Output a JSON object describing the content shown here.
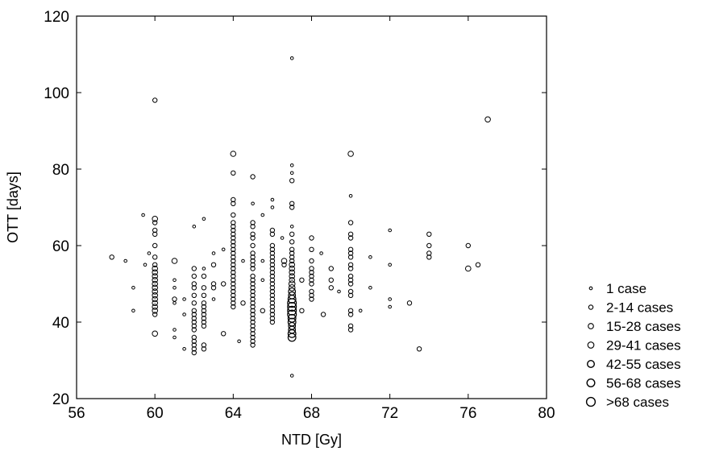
{
  "chart_data": {
    "type": "scatter",
    "title": "",
    "xlabel": "NTD [Gy]",
    "ylabel": "OTT [days]",
    "xlim": [
      56,
      80
    ],
    "ylim": [
      20,
      120
    ],
    "x_ticks": [
      56,
      60,
      64,
      68,
      72,
      76,
      80
    ],
    "y_ticks": [
      20,
      40,
      60,
      80,
      100,
      120
    ],
    "x_tick_labels": [
      "56",
      "60",
      "64",
      "68",
      "72",
      "76",
      "80"
    ],
    "y_tick_labels": [
      "20",
      "40",
      "60",
      "80",
      "100",
      "120"
    ],
    "grid": false,
    "legend_position": "right",
    "marker": "open-circle",
    "marker_color": "#000000",
    "legend": [
      {
        "label": "1 case",
        "size_class": 1
      },
      {
        "label": "2-14 cases",
        "size_class": 2
      },
      {
        "label": "15-28 cases",
        "size_class": 3
      },
      {
        "label": "29-41 cases",
        "size_class": 4
      },
      {
        "label": "42-55 cases",
        "size_class": 5
      },
      {
        "label": "56-68 cases",
        "size_class": 6
      },
      {
        "label": ">68 cases",
        "size_class": 7
      }
    ],
    "points": [
      {
        "x": 57.8,
        "y": 57,
        "s": 2
      },
      {
        "x": 58.5,
        "y": 56,
        "s": 1
      },
      {
        "x": 58.9,
        "y": 49,
        "s": 1
      },
      {
        "x": 58.9,
        "y": 43,
        "s": 1
      },
      {
        "x": 59.4,
        "y": 68,
        "s": 1
      },
      {
        "x": 59.5,
        "y": 55,
        "s": 1
      },
      {
        "x": 59.7,
        "y": 58,
        "s": 1
      },
      {
        "x": 60.0,
        "y": 98,
        "s": 2
      },
      {
        "x": 60.0,
        "y": 67,
        "s": 3
      },
      {
        "x": 60.0,
        "y": 66,
        "s": 2
      },
      {
        "x": 60.0,
        "y": 64,
        "s": 2
      },
      {
        "x": 60.0,
        "y": 63,
        "s": 2
      },
      {
        "x": 60.0,
        "y": 60,
        "s": 2
      },
      {
        "x": 60.0,
        "y": 57,
        "s": 2
      },
      {
        "x": 60.0,
        "y": 55,
        "s": 2
      },
      {
        "x": 60.0,
        "y": 54,
        "s": 3
      },
      {
        "x": 60.0,
        "y": 53,
        "s": 3
      },
      {
        "x": 60.0,
        "y": 52,
        "s": 3
      },
      {
        "x": 60.0,
        "y": 51,
        "s": 3
      },
      {
        "x": 60.0,
        "y": 50,
        "s": 3
      },
      {
        "x": 60.0,
        "y": 49,
        "s": 3
      },
      {
        "x": 60.0,
        "y": 48,
        "s": 3
      },
      {
        "x": 60.0,
        "y": 47,
        "s": 3
      },
      {
        "x": 60.0,
        "y": 46,
        "s": 3
      },
      {
        "x": 60.0,
        "y": 45,
        "s": 3
      },
      {
        "x": 60.0,
        "y": 44,
        "s": 3
      },
      {
        "x": 60.0,
        "y": 43,
        "s": 3
      },
      {
        "x": 60.0,
        "y": 42,
        "s": 2
      },
      {
        "x": 60.0,
        "y": 37,
        "s": 3
      },
      {
        "x": 61.0,
        "y": 56,
        "s": 3
      },
      {
        "x": 61.0,
        "y": 51,
        "s": 1
      },
      {
        "x": 61.0,
        "y": 49,
        "s": 1
      },
      {
        "x": 61.0,
        "y": 46,
        "s": 2
      },
      {
        "x": 61.0,
        "y": 45,
        "s": 1
      },
      {
        "x": 61.0,
        "y": 38,
        "s": 1
      },
      {
        "x": 61.0,
        "y": 36,
        "s": 1
      },
      {
        "x": 61.5,
        "y": 46,
        "s": 1
      },
      {
        "x": 61.5,
        "y": 42,
        "s": 1
      },
      {
        "x": 61.5,
        "y": 33,
        "s": 1
      },
      {
        "x": 62.0,
        "y": 65,
        "s": 1
      },
      {
        "x": 62.0,
        "y": 54,
        "s": 2
      },
      {
        "x": 62.0,
        "y": 52,
        "s": 2
      },
      {
        "x": 62.0,
        "y": 50,
        "s": 2
      },
      {
        "x": 62.0,
        "y": 49,
        "s": 2
      },
      {
        "x": 62.0,
        "y": 47,
        "s": 2
      },
      {
        "x": 62.0,
        "y": 45,
        "s": 2
      },
      {
        "x": 62.0,
        "y": 43,
        "s": 2
      },
      {
        "x": 62.0,
        "y": 42,
        "s": 2
      },
      {
        "x": 62.0,
        "y": 41,
        "s": 2
      },
      {
        "x": 62.0,
        "y": 40,
        "s": 2
      },
      {
        "x": 62.0,
        "y": 39,
        "s": 2
      },
      {
        "x": 62.0,
        "y": 38,
        "s": 2
      },
      {
        "x": 62.0,
        "y": 36,
        "s": 2
      },
      {
        "x": 62.0,
        "y": 35,
        "s": 2
      },
      {
        "x": 62.0,
        "y": 34,
        "s": 2
      },
      {
        "x": 62.0,
        "y": 33,
        "s": 2
      },
      {
        "x": 62.0,
        "y": 32,
        "s": 2
      },
      {
        "x": 62.5,
        "y": 67,
        "s": 1
      },
      {
        "x": 62.5,
        "y": 54,
        "s": 1
      },
      {
        "x": 62.5,
        "y": 52,
        "s": 2
      },
      {
        "x": 62.5,
        "y": 49,
        "s": 2
      },
      {
        "x": 62.5,
        "y": 47,
        "s": 2
      },
      {
        "x": 62.5,
        "y": 45,
        "s": 2
      },
      {
        "x": 62.5,
        "y": 44,
        "s": 2
      },
      {
        "x": 62.5,
        "y": 43,
        "s": 2
      },
      {
        "x": 62.5,
        "y": 42,
        "s": 2
      },
      {
        "x": 62.5,
        "y": 41,
        "s": 2
      },
      {
        "x": 62.5,
        "y": 40,
        "s": 2
      },
      {
        "x": 62.5,
        "y": 39,
        "s": 2
      },
      {
        "x": 62.5,
        "y": 34,
        "s": 2
      },
      {
        "x": 62.5,
        "y": 33,
        "s": 2
      },
      {
        "x": 63.0,
        "y": 58,
        "s": 1
      },
      {
        "x": 63.0,
        "y": 55,
        "s": 2
      },
      {
        "x": 63.0,
        "y": 50,
        "s": 2
      },
      {
        "x": 63.0,
        "y": 49,
        "s": 2
      },
      {
        "x": 63.0,
        "y": 46,
        "s": 1
      },
      {
        "x": 63.5,
        "y": 59,
        "s": 1
      },
      {
        "x": 63.5,
        "y": 50,
        "s": 2
      },
      {
        "x": 63.5,
        "y": 37,
        "s": 2
      },
      {
        "x": 64.0,
        "y": 84,
        "s": 3
      },
      {
        "x": 64.0,
        "y": 79,
        "s": 2
      },
      {
        "x": 64.0,
        "y": 72,
        "s": 2
      },
      {
        "x": 64.0,
        "y": 71,
        "s": 2
      },
      {
        "x": 64.0,
        "y": 68,
        "s": 2
      },
      {
        "x": 64.0,
        "y": 66,
        "s": 2
      },
      {
        "x": 64.0,
        "y": 65,
        "s": 2
      },
      {
        "x": 64.0,
        "y": 64,
        "s": 2
      },
      {
        "x": 64.0,
        "y": 63,
        "s": 2
      },
      {
        "x": 64.0,
        "y": 62,
        "s": 2
      },
      {
        "x": 64.0,
        "y": 61,
        "s": 2
      },
      {
        "x": 64.0,
        "y": 60,
        "s": 2
      },
      {
        "x": 64.0,
        "y": 59,
        "s": 2
      },
      {
        "x": 64.0,
        "y": 58,
        "s": 2
      },
      {
        "x": 64.0,
        "y": 57,
        "s": 2
      },
      {
        "x": 64.0,
        "y": 56,
        "s": 2
      },
      {
        "x": 64.0,
        "y": 55,
        "s": 2
      },
      {
        "x": 64.0,
        "y": 54,
        "s": 2
      },
      {
        "x": 64.0,
        "y": 53,
        "s": 2
      },
      {
        "x": 64.0,
        "y": 52,
        "s": 2
      },
      {
        "x": 64.0,
        "y": 51,
        "s": 2
      },
      {
        "x": 64.0,
        "y": 50,
        "s": 2
      },
      {
        "x": 64.0,
        "y": 49,
        "s": 2
      },
      {
        "x": 64.0,
        "y": 48,
        "s": 2
      },
      {
        "x": 64.0,
        "y": 47,
        "s": 2
      },
      {
        "x": 64.0,
        "y": 46,
        "s": 2
      },
      {
        "x": 64.0,
        "y": 45,
        "s": 2
      },
      {
        "x": 64.0,
        "y": 44,
        "s": 2
      },
      {
        "x": 64.3,
        "y": 35,
        "s": 1
      },
      {
        "x": 64.5,
        "y": 56,
        "s": 1
      },
      {
        "x": 64.5,
        "y": 45,
        "s": 2
      },
      {
        "x": 65.0,
        "y": 78,
        "s": 2
      },
      {
        "x": 65.0,
        "y": 71,
        "s": 1
      },
      {
        "x": 65.0,
        "y": 66,
        "s": 2
      },
      {
        "x": 65.0,
        "y": 65,
        "s": 2
      },
      {
        "x": 65.0,
        "y": 63,
        "s": 2
      },
      {
        "x": 65.0,
        "y": 62,
        "s": 2
      },
      {
        "x": 65.0,
        "y": 60,
        "s": 2
      },
      {
        "x": 65.0,
        "y": 58,
        "s": 2
      },
      {
        "x": 65.0,
        "y": 57,
        "s": 2
      },
      {
        "x": 65.0,
        "y": 56,
        "s": 2
      },
      {
        "x": 65.0,
        "y": 55,
        "s": 2
      },
      {
        "x": 65.0,
        "y": 54,
        "s": 2
      },
      {
        "x": 65.0,
        "y": 52,
        "s": 2
      },
      {
        "x": 65.0,
        "y": 51,
        "s": 2
      },
      {
        "x": 65.0,
        "y": 50,
        "s": 2
      },
      {
        "x": 65.0,
        "y": 49,
        "s": 2
      },
      {
        "x": 65.0,
        "y": 48,
        "s": 2
      },
      {
        "x": 65.0,
        "y": 47,
        "s": 2
      },
      {
        "x": 65.0,
        "y": 46,
        "s": 2
      },
      {
        "x": 65.0,
        "y": 45,
        "s": 2
      },
      {
        "x": 65.0,
        "y": 44,
        "s": 2
      },
      {
        "x": 65.0,
        "y": 43,
        "s": 2
      },
      {
        "x": 65.0,
        "y": 42,
        "s": 2
      },
      {
        "x": 65.0,
        "y": 41,
        "s": 2
      },
      {
        "x": 65.0,
        "y": 40,
        "s": 2
      },
      {
        "x": 65.0,
        "y": 39,
        "s": 2
      },
      {
        "x": 65.0,
        "y": 38,
        "s": 2
      },
      {
        "x": 65.0,
        "y": 37,
        "s": 2
      },
      {
        "x": 65.0,
        "y": 36,
        "s": 2
      },
      {
        "x": 65.0,
        "y": 35,
        "s": 2
      },
      {
        "x": 65.0,
        "y": 34,
        "s": 2
      },
      {
        "x": 65.5,
        "y": 68,
        "s": 1
      },
      {
        "x": 65.5,
        "y": 56,
        "s": 1
      },
      {
        "x": 65.5,
        "y": 51,
        "s": 1
      },
      {
        "x": 65.5,
        "y": 43,
        "s": 2
      },
      {
        "x": 66.0,
        "y": 72,
        "s": 1
      },
      {
        "x": 66.0,
        "y": 70,
        "s": 1
      },
      {
        "x": 66.0,
        "y": 64,
        "s": 2
      },
      {
        "x": 66.0,
        "y": 63,
        "s": 2
      },
      {
        "x": 66.0,
        "y": 60,
        "s": 2
      },
      {
        "x": 66.0,
        "y": 59,
        "s": 2
      },
      {
        "x": 66.0,
        "y": 58,
        "s": 2
      },
      {
        "x": 66.0,
        "y": 57,
        "s": 2
      },
      {
        "x": 66.0,
        "y": 56,
        "s": 2
      },
      {
        "x": 66.0,
        "y": 55,
        "s": 2
      },
      {
        "x": 66.0,
        "y": 54,
        "s": 2
      },
      {
        "x": 66.0,
        "y": 53,
        "s": 2
      },
      {
        "x": 66.0,
        "y": 52,
        "s": 2
      },
      {
        "x": 66.0,
        "y": 51,
        "s": 2
      },
      {
        "x": 66.0,
        "y": 50,
        "s": 2
      },
      {
        "x": 66.0,
        "y": 49,
        "s": 2
      },
      {
        "x": 66.0,
        "y": 48,
        "s": 2
      },
      {
        "x": 66.0,
        "y": 47,
        "s": 2
      },
      {
        "x": 66.0,
        "y": 46,
        "s": 2
      },
      {
        "x": 66.0,
        "y": 45,
        "s": 2
      },
      {
        "x": 66.0,
        "y": 44,
        "s": 2
      },
      {
        "x": 66.0,
        "y": 43,
        "s": 2
      },
      {
        "x": 66.0,
        "y": 42,
        "s": 2
      },
      {
        "x": 66.0,
        "y": 41,
        "s": 2
      },
      {
        "x": 66.0,
        "y": 40,
        "s": 2
      },
      {
        "x": 66.5,
        "y": 62,
        "s": 1
      },
      {
        "x": 66.6,
        "y": 56,
        "s": 3
      },
      {
        "x": 66.6,
        "y": 55,
        "s": 2
      },
      {
        "x": 67.0,
        "y": 109,
        "s": 1
      },
      {
        "x": 67.0,
        "y": 81,
        "s": 1
      },
      {
        "x": 67.0,
        "y": 79,
        "s": 1
      },
      {
        "x": 67.0,
        "y": 77,
        "s": 2
      },
      {
        "x": 67.0,
        "y": 71,
        "s": 2
      },
      {
        "x": 67.0,
        "y": 70,
        "s": 2
      },
      {
        "x": 67.0,
        "y": 65,
        "s": 1
      },
      {
        "x": 67.0,
        "y": 63,
        "s": 2
      },
      {
        "x": 67.0,
        "y": 61,
        "s": 2
      },
      {
        "x": 67.0,
        "y": 59,
        "s": 2
      },
      {
        "x": 67.0,
        "y": 58,
        "s": 2
      },
      {
        "x": 67.0,
        "y": 57,
        "s": 2
      },
      {
        "x": 67.0,
        "y": 56,
        "s": 2
      },
      {
        "x": 67.0,
        "y": 55,
        "s": 3
      },
      {
        "x": 67.0,
        "y": 54,
        "s": 3
      },
      {
        "x": 67.0,
        "y": 53,
        "s": 3
      },
      {
        "x": 67.0,
        "y": 52,
        "s": 3
      },
      {
        "x": 67.0,
        "y": 51,
        "s": 3
      },
      {
        "x": 67.0,
        "y": 50,
        "s": 4
      },
      {
        "x": 67.0,
        "y": 49,
        "s": 4
      },
      {
        "x": 67.0,
        "y": 48,
        "s": 5
      },
      {
        "x": 67.0,
        "y": 47,
        "s": 5
      },
      {
        "x": 67.0,
        "y": 46,
        "s": 6
      },
      {
        "x": 67.0,
        "y": 45,
        "s": 7
      },
      {
        "x": 67.0,
        "y": 44,
        "s": 7
      },
      {
        "x": 67.0,
        "y": 43,
        "s": 7
      },
      {
        "x": 67.0,
        "y": 42,
        "s": 7
      },
      {
        "x": 67.0,
        "y": 41,
        "s": 6
      },
      {
        "x": 67.0,
        "y": 40,
        "s": 6
      },
      {
        "x": 67.0,
        "y": 39,
        "s": 5
      },
      {
        "x": 67.0,
        "y": 38,
        "s": 5
      },
      {
        "x": 67.0,
        "y": 37,
        "s": 6
      },
      {
        "x": 67.0,
        "y": 36,
        "s": 6
      },
      {
        "x": 67.0,
        "y": 26,
        "s": 1
      },
      {
        "x": 67.5,
        "y": 51,
        "s": 2
      },
      {
        "x": 67.5,
        "y": 43,
        "s": 2
      },
      {
        "x": 68.0,
        "y": 62,
        "s": 2
      },
      {
        "x": 68.0,
        "y": 59,
        "s": 2
      },
      {
        "x": 68.0,
        "y": 56,
        "s": 2
      },
      {
        "x": 68.0,
        "y": 54,
        "s": 2
      },
      {
        "x": 68.0,
        "y": 53,
        "s": 2
      },
      {
        "x": 68.0,
        "y": 52,
        "s": 2
      },
      {
        "x": 68.0,
        "y": 51,
        "s": 2
      },
      {
        "x": 68.0,
        "y": 50,
        "s": 2
      },
      {
        "x": 68.0,
        "y": 48,
        "s": 2
      },
      {
        "x": 68.0,
        "y": 47,
        "s": 2
      },
      {
        "x": 68.0,
        "y": 46,
        "s": 2
      },
      {
        "x": 68.5,
        "y": 58,
        "s": 1
      },
      {
        "x": 68.6,
        "y": 42,
        "s": 2
      },
      {
        "x": 69.0,
        "y": 54,
        "s": 2
      },
      {
        "x": 69.0,
        "y": 51,
        "s": 2
      },
      {
        "x": 69.0,
        "y": 49,
        "s": 2
      },
      {
        "x": 69.4,
        "y": 48,
        "s": 1
      },
      {
        "x": 70.0,
        "y": 84,
        "s": 3
      },
      {
        "x": 70.0,
        "y": 73,
        "s": 1
      },
      {
        "x": 70.0,
        "y": 66,
        "s": 2
      },
      {
        "x": 70.0,
        "y": 63,
        "s": 2
      },
      {
        "x": 70.0,
        "y": 62,
        "s": 2
      },
      {
        "x": 70.0,
        "y": 59,
        "s": 2
      },
      {
        "x": 70.0,
        "y": 58,
        "s": 2
      },
      {
        "x": 70.0,
        "y": 57,
        "s": 2
      },
      {
        "x": 70.0,
        "y": 55,
        "s": 2
      },
      {
        "x": 70.0,
        "y": 54,
        "s": 2
      },
      {
        "x": 70.0,
        "y": 52,
        "s": 2
      },
      {
        "x": 70.0,
        "y": 51,
        "s": 2
      },
      {
        "x": 70.0,
        "y": 50,
        "s": 2
      },
      {
        "x": 70.0,
        "y": 48,
        "s": 2
      },
      {
        "x": 70.0,
        "y": 47,
        "s": 2
      },
      {
        "x": 70.0,
        "y": 43,
        "s": 2
      },
      {
        "x": 70.0,
        "y": 42,
        "s": 2
      },
      {
        "x": 70.0,
        "y": 39,
        "s": 2
      },
      {
        "x": 70.0,
        "y": 38,
        "s": 2
      },
      {
        "x": 70.5,
        "y": 43,
        "s": 1
      },
      {
        "x": 71.0,
        "y": 57,
        "s": 1
      },
      {
        "x": 71.0,
        "y": 49,
        "s": 1
      },
      {
        "x": 72.0,
        "y": 64,
        "s": 1
      },
      {
        "x": 72.0,
        "y": 55,
        "s": 1
      },
      {
        "x": 72.0,
        "y": 46,
        "s": 1
      },
      {
        "x": 72.0,
        "y": 44,
        "s": 1
      },
      {
        "x": 73.0,
        "y": 45,
        "s": 2
      },
      {
        "x": 73.5,
        "y": 33,
        "s": 2
      },
      {
        "x": 74.0,
        "y": 63,
        "s": 2
      },
      {
        "x": 74.0,
        "y": 60,
        "s": 2
      },
      {
        "x": 74.0,
        "y": 58,
        "s": 2
      },
      {
        "x": 74.0,
        "y": 57,
        "s": 2
      },
      {
        "x": 76.0,
        "y": 60,
        "s": 2
      },
      {
        "x": 76.0,
        "y": 54,
        "s": 3
      },
      {
        "x": 76.5,
        "y": 55,
        "s": 2
      },
      {
        "x": 77.0,
        "y": 93,
        "s": 3
      }
    ]
  }
}
